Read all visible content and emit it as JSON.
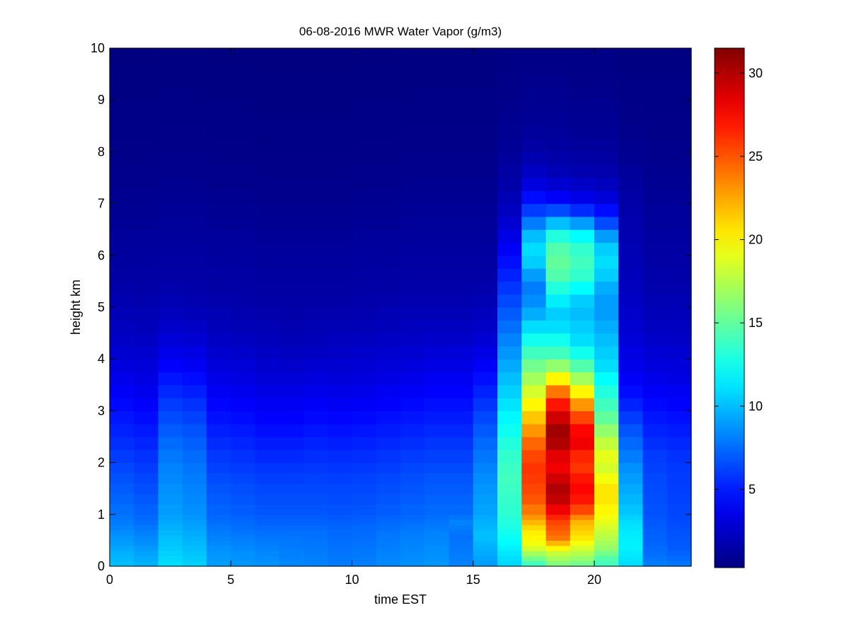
{
  "chart_data": {
    "type": "heatmap",
    "title": "06-08-2016 MWR Water Vapor (g/m3)",
    "xlabel": "time EST",
    "ylabel": "height km",
    "xlim": [
      0,
      24
    ],
    "ylim": [
      0,
      10
    ],
    "x_ticks": [
      0,
      5,
      10,
      15,
      20
    ],
    "y_ticks": [
      0,
      1,
      2,
      3,
      4,
      5,
      6,
      7,
      8,
      9,
      10
    ],
    "grid": false,
    "colorbar": {
      "colormap": "jet",
      "clim": [
        0.3,
        31.5
      ],
      "ticks": [
        5,
        10,
        15,
        20,
        25,
        30
      ]
    },
    "time_bins": [
      0,
      1,
      2,
      3,
      4,
      5,
      6,
      7,
      8,
      9,
      10,
      11,
      12,
      13,
      14,
      15,
      16,
      17,
      18,
      19,
      20,
      21,
      22,
      23
    ],
    "height_bins_km": [
      0.0,
      0.1,
      0.2,
      0.3,
      0.4,
      0.5,
      0.6,
      0.7,
      0.8,
      0.9,
      1.0,
      1.2,
      1.4,
      1.6,
      1.8,
      2.0,
      2.25,
      2.5,
      2.75,
      3.0,
      3.25,
      3.5,
      3.75,
      4.0,
      4.25,
      4.5,
      4.75,
      5.0,
      5.25,
      5.5,
      5.75,
      6.0,
      6.25,
      6.5,
      6.75,
      7.0,
      7.25,
      7.5,
      7.75,
      8.0,
      8.25,
      8.5,
      8.75,
      9.0,
      9.25,
      9.5,
      9.75
    ],
    "values_g_m3": [
      [
        10.0,
        9.8,
        9.6,
        9.3,
        9.0,
        8.8,
        8.5,
        8.2,
        8.0,
        7.8,
        7.6,
        7.3,
        7.0,
        6.7,
        6.4,
        6.0,
        5.6,
        5.2,
        4.8,
        4.4,
        4.0,
        3.6,
        3.2,
        2.8,
        2.5,
        2.2,
        2.0,
        1.8,
        1.6,
        1.4,
        1.3,
        1.2,
        1.1,
        1.0,
        0.9,
        0.8,
        0.7,
        0.7,
        0.6,
        0.6,
        0.5,
        0.5,
        0.5,
        0.4,
        0.4,
        0.4,
        0.3
      ],
      [
        9.6,
        9.4,
        9.2,
        8.9,
        8.6,
        8.4,
        8.1,
        7.9,
        7.6,
        7.4,
        7.2,
        6.9,
        6.6,
        6.3,
        6.0,
        5.7,
        5.3,
        4.9,
        4.5,
        4.1,
        3.7,
        3.3,
        3.0,
        2.7,
        2.4,
        2.1,
        1.9,
        1.7,
        1.5,
        1.4,
        1.3,
        1.2,
        1.1,
        1.0,
        0.9,
        0.8,
        0.7,
        0.7,
        0.6,
        0.6,
        0.5,
        0.5,
        0.5,
        0.4,
        0.4,
        0.4,
        0.3
      ],
      [
        11.0,
        10.8,
        10.6,
        10.4,
        10.2,
        10.0,
        9.8,
        9.6,
        9.4,
        9.2,
        9.0,
        8.8,
        8.6,
        8.4,
        8.2,
        7.9,
        7.5,
        7.0,
        6.5,
        6.0,
        5.4,
        4.8,
        4.2,
        3.6,
        3.0,
        2.6,
        2.2,
        1.9,
        1.7,
        1.5,
        1.4,
        1.3,
        1.2,
        1.1,
        1.0,
        0.9,
        0.8,
        0.7,
        0.7,
        0.6,
        0.6,
        0.5,
        0.5,
        0.5,
        0.4,
        0.4,
        0.4
      ],
      [
        10.6,
        10.4,
        10.2,
        10.0,
        9.8,
        9.6,
        9.4,
        9.2,
        9.0,
        8.8,
        8.6,
        8.4,
        8.2,
        8.0,
        7.8,
        7.5,
        7.1,
        6.7,
        6.2,
        5.7,
        5.1,
        4.5,
        3.9,
        3.4,
        2.9,
        2.5,
        2.1,
        1.8,
        1.6,
        1.5,
        1.4,
        1.3,
        1.2,
        1.1,
        1.0,
        0.9,
        0.8,
        0.7,
        0.7,
        0.6,
        0.6,
        0.5,
        0.5,
        0.5,
        0.4,
        0.4,
        0.4
      ],
      [
        9.0,
        8.9,
        8.8,
        8.6,
        8.4,
        8.2,
        8.0,
        7.8,
        7.6,
        7.4,
        7.2,
        7.0,
        6.8,
        6.5,
        6.2,
        5.9,
        5.5,
        5.1,
        4.7,
        4.3,
        3.9,
        3.5,
        3.1,
        2.7,
        2.4,
        2.1,
        1.9,
        1.7,
        1.5,
        1.4,
        1.3,
        1.2,
        1.1,
        1.0,
        0.9,
        0.8,
        0.7,
        0.7,
        0.6,
        0.6,
        0.5,
        0.5,
        0.5,
        0.4,
        0.4,
        0.4,
        0.3
      ],
      [
        8.8,
        8.7,
        8.6,
        8.4,
        8.2,
        8.0,
        7.8,
        7.6,
        7.4,
        7.2,
        7.0,
        6.8,
        6.6,
        6.3,
        6.0,
        5.7,
        5.3,
        4.9,
        4.5,
        4.1,
        3.7,
        3.3,
        3.0,
        2.6,
        2.3,
        2.0,
        1.8,
        1.6,
        1.5,
        1.4,
        1.3,
        1.2,
        1.1,
        1.0,
        0.9,
        0.8,
        0.7,
        0.7,
        0.6,
        0.6,
        0.5,
        0.5,
        0.5,
        0.4,
        0.4,
        0.4,
        0.3
      ],
      [
        8.6,
        8.5,
        8.4,
        8.2,
        8.0,
        7.8,
        7.6,
        7.4,
        7.2,
        7.0,
        6.8,
        6.6,
        6.4,
        6.1,
        5.8,
        5.4,
        5.0,
        4.6,
        4.2,
        3.8,
        3.4,
        3.0,
        2.7,
        2.4,
        2.1,
        1.9,
        1.7,
        1.5,
        1.4,
        1.3,
        1.2,
        1.1,
        1.0,
        0.9,
        0.8,
        0.7,
        0.7,
        0.6,
        0.6,
        0.5,
        0.5,
        0.5,
        0.4,
        0.4,
        0.4,
        0.3,
        0.3
      ],
      [
        8.3,
        8.2,
        8.1,
        8.0,
        7.9,
        7.8,
        7.6,
        7.4,
        7.2,
        7.0,
        6.8,
        6.6,
        6.4,
        6.1,
        5.8,
        5.4,
        5.0,
        4.6,
        4.2,
        3.8,
        3.4,
        3.0,
        2.6,
        2.3,
        2.0,
        1.8,
        1.6,
        1.5,
        1.4,
        1.3,
        1.2,
        1.1,
        1.0,
        0.9,
        0.8,
        0.7,
        0.7,
        0.6,
        0.6,
        0.5,
        0.5,
        0.5,
        0.4,
        0.4,
        0.4,
        0.3,
        0.3
      ],
      [
        8.2,
        8.1,
        8.0,
        7.9,
        7.8,
        7.7,
        7.6,
        7.4,
        7.2,
        7.0,
        6.8,
        6.6,
        6.4,
        6.2,
        5.9,
        5.6,
        5.2,
        4.8,
        4.4,
        4.0,
        3.6,
        3.2,
        2.8,
        2.4,
        2.1,
        1.9,
        1.7,
        1.5,
        1.4,
        1.3,
        1.2,
        1.1,
        1.0,
        0.9,
        0.8,
        0.7,
        0.7,
        0.6,
        0.6,
        0.5,
        0.5,
        0.5,
        0.4,
        0.4,
        0.4,
        0.3,
        0.3
      ],
      [
        8.0,
        7.9,
        7.8,
        7.7,
        7.6,
        7.5,
        7.4,
        7.3,
        7.1,
        6.9,
        6.7,
        6.5,
        6.3,
        6.1,
        5.8,
        5.5,
        5.1,
        4.7,
        4.3,
        3.9,
        3.5,
        3.1,
        2.8,
        2.5,
        2.2,
        1.9,
        1.7,
        1.5,
        1.4,
        1.3,
        1.2,
        1.1,
        1.0,
        0.9,
        0.8,
        0.7,
        0.7,
        0.6,
        0.6,
        0.5,
        0.5,
        0.5,
        0.4,
        0.4,
        0.4,
        0.3,
        0.3
      ],
      [
        8.1,
        8.0,
        7.9,
        7.8,
        7.7,
        7.6,
        7.5,
        7.4,
        7.2,
        7.0,
        6.8,
        6.6,
        6.4,
        6.2,
        5.9,
        5.6,
        5.2,
        4.8,
        4.4,
        4.0,
        3.6,
        3.2,
        2.9,
        2.6,
        2.3,
        2.0,
        1.8,
        1.6,
        1.5,
        1.4,
        1.3,
        1.2,
        1.1,
        1.0,
        0.9,
        0.8,
        0.7,
        0.7,
        0.6,
        0.6,
        0.5,
        0.5,
        0.5,
        0.4,
        0.4,
        0.4,
        0.3
      ],
      [
        8.4,
        8.3,
        8.2,
        8.1,
        8.0,
        7.9,
        7.8,
        7.6,
        7.4,
        7.2,
        7.0,
        6.8,
        6.6,
        6.4,
        6.1,
        5.8,
        5.4,
        5.0,
        4.6,
        4.2,
        3.8,
        3.4,
        3.0,
        2.7,
        2.4,
        2.1,
        1.9,
        1.7,
        1.5,
        1.4,
        1.3,
        1.2,
        1.1,
        1.0,
        0.9,
        0.8,
        0.7,
        0.7,
        0.6,
        0.6,
        0.5,
        0.5,
        0.5,
        0.4,
        0.4,
        0.4,
        0.3
      ],
      [
        8.6,
        8.5,
        8.4,
        8.3,
        8.2,
        8.1,
        8.0,
        7.8,
        7.6,
        7.4,
        7.2,
        7.0,
        6.8,
        6.6,
        6.3,
        6.0,
        5.6,
        5.2,
        4.8,
        4.4,
        4.0,
        3.6,
        3.2,
        2.8,
        2.5,
        2.2,
        2.0,
        1.8,
        1.6,
        1.5,
        1.4,
        1.3,
        1.2,
        1.1,
        1.0,
        0.9,
        0.8,
        0.7,
        0.7,
        0.6,
        0.6,
        0.5,
        0.5,
        0.5,
        0.4,
        0.4,
        0.4
      ],
      [
        8.8,
        8.7,
        8.6,
        8.5,
        8.4,
        8.3,
        8.2,
        8.0,
        7.8,
        7.6,
        7.4,
        7.2,
        7.0,
        6.8,
        6.5,
        6.2,
        5.8,
        5.4,
        5.0,
        4.6,
        4.2,
        3.8,
        3.4,
        3.0,
        2.6,
        2.3,
        2.0,
        1.8,
        1.6,
        1.5,
        1.4,
        1.3,
        1.2,
        1.1,
        1.0,
        0.9,
        0.8,
        0.7,
        0.7,
        0.6,
        0.6,
        0.5,
        0.5,
        0.5,
        0.4,
        0.4,
        0.4
      ],
      [
        8.2,
        8.1,
        8.0,
        7.9,
        7.8,
        7.7,
        7.8,
        8.0,
        8.2,
        7.8,
        7.4,
        7.2,
        7.0,
        6.8,
        6.5,
        6.2,
        5.8,
        5.4,
        5.0,
        4.6,
        4.2,
        3.8,
        3.4,
        3.0,
        2.6,
        2.3,
        2.0,
        1.8,
        1.6,
        1.5,
        1.4,
        1.3,
        1.2,
        1.1,
        1.0,
        0.9,
        0.8,
        0.7,
        0.7,
        0.6,
        0.6,
        0.5,
        0.5,
        0.5,
        0.4,
        0.4,
        0.4
      ],
      [
        9.0,
        9.2,
        9.4,
        9.6,
        9.8,
        10.0,
        10.0,
        9.8,
        9.6,
        9.4,
        9.2,
        9.0,
        8.8,
        8.5,
        8.2,
        7.8,
        7.4,
        6.9,
        6.4,
        5.8,
        5.2,
        4.6,
        4.0,
        3.4,
        2.9,
        2.5,
        2.2,
        1.9,
        1.7,
        1.5,
        1.4,
        1.3,
        1.2,
        1.1,
        1.0,
        0.9,
        0.8,
        0.7,
        0.7,
        0.6,
        0.6,
        0.5,
        0.5,
        0.5,
        0.4,
        0.4,
        0.4
      ],
      [
        10.8,
        11.0,
        11.3,
        11.6,
        11.9,
        12.2,
        12.5,
        12.8,
        13.0,
        13.2,
        13.4,
        13.6,
        13.8,
        14.0,
        13.8,
        13.5,
        13.0,
        12.4,
        11.8,
        11.2,
        10.6,
        10.0,
        9.4,
        8.8,
        8.2,
        7.6,
        7.0,
        6.4,
        5.8,
        5.2,
        4.6,
        4.0,
        3.4,
        2.8,
        2.3,
        1.9,
        1.6,
        1.4,
        1.2,
        1.0,
        0.9,
        0.8,
        0.7,
        0.6,
        0.6,
        0.5,
        0.5
      ],
      [
        14.0,
        15.5,
        17.0,
        18.5,
        19.5,
        20.0,
        20.3,
        21.0,
        22.0,
        23.0,
        24.0,
        25.0,
        25.5,
        25.8,
        26.0,
        25.5,
        24.5,
        23.0,
        21.5,
        20.0,
        18.5,
        17.0,
        15.5,
        14.0,
        12.5,
        11.0,
        9.5,
        8.5,
        8.0,
        9.0,
        10.5,
        11.0,
        10.0,
        8.0,
        6.0,
        4.5,
        3.2,
        2.4,
        1.8,
        1.4,
        1.2,
        1.0,
        0.9,
        0.8,
        0.7,
        0.6,
        0.5
      ],
      [
        16.0,
        17.0,
        18.0,
        20.0,
        22.0,
        24.0,
        24.5,
        25.0,
        25.5,
        26.5,
        28.0,
        29.5,
        30.0,
        29.0,
        28.0,
        28.5,
        30.0,
        30.5,
        29.0,
        27.0,
        24.0,
        20.0,
        16.5,
        14.0,
        12.5,
        11.0,
        10.5,
        11.5,
        13.0,
        14.5,
        15.0,
        14.5,
        13.0,
        10.0,
        6.5,
        4.0,
        2.8,
        2.0,
        1.6,
        1.3,
        1.1,
        1.0,
        0.9,
        0.8,
        0.7,
        0.6,
        0.5
      ],
      [
        15.5,
        16.5,
        17.5,
        18.5,
        19.5,
        20.5,
        21.0,
        21.5,
        22.0,
        23.5,
        25.5,
        27.0,
        27.5,
        27.0,
        26.0,
        26.5,
        28.0,
        27.5,
        25.5,
        23.0,
        20.0,
        17.0,
        14.5,
        12.5,
        11.0,
        10.5,
        10.0,
        10.5,
        12.0,
        13.5,
        14.0,
        13.5,
        12.0,
        9.0,
        5.5,
        3.5,
        2.5,
        1.8,
        1.5,
        1.2,
        1.0,
        0.9,
        0.8,
        0.7,
        0.6,
        0.5,
        0.5
      ],
      [
        14.0,
        14.5,
        15.5,
        16.5,
        17.0,
        17.5,
        18.0,
        18.5,
        19.0,
        19.5,
        20.0,
        20.5,
        20.5,
        19.5,
        18.5,
        19.0,
        18.0,
        16.5,
        15.0,
        14.0,
        13.0,
        12.0,
        11.0,
        10.5,
        10.0,
        9.5,
        9.0,
        9.0,
        9.5,
        10.5,
        11.0,
        10.5,
        9.0,
        6.5,
        4.5,
        3.0,
        2.2,
        1.7,
        1.4,
        1.1,
        1.0,
        0.9,
        0.8,
        0.7,
        0.6,
        0.5,
        0.5
      ],
      [
        11.0,
        11.2,
        11.4,
        11.6,
        11.6,
        11.5,
        11.4,
        11.2,
        11.0,
        10.6,
        10.2,
        9.8,
        9.4,
        9.0,
        8.6,
        8.0,
        7.4,
        6.8,
        6.0,
        5.2,
        4.5,
        4.0,
        3.6,
        3.3,
        3.0,
        2.8,
        2.6,
        2.4,
        2.2,
        2.1,
        2.0,
        1.9,
        1.8,
        1.7,
        1.6,
        1.5,
        1.3,
        1.1,
        0.9,
        0.8,
        0.7,
        0.6,
        0.6,
        0.5,
        0.5,
        0.4,
        0.4
      ],
      [
        8.0,
        7.8,
        7.6,
        7.4,
        7.3,
        7.2,
        7.1,
        7.0,
        6.9,
        6.8,
        6.7,
        6.6,
        6.5,
        6.4,
        6.2,
        6.0,
        5.6,
        5.2,
        4.8,
        4.4,
        4.0,
        3.6,
        3.2,
        2.9,
        2.6,
        2.3,
        2.1,
        1.9,
        1.7,
        1.6,
        1.5,
        1.4,
        1.3,
        1.2,
        1.1,
        1.0,
        0.9,
        0.8,
        0.7,
        0.7,
        0.6,
        0.6,
        0.5,
        0.5,
        0.5,
        0.4,
        0.4
      ],
      [
        7.8,
        7.5,
        7.2,
        7.0,
        6.9,
        6.8,
        6.7,
        6.6,
        6.5,
        6.4,
        6.3,
        6.2,
        6.1,
        6.0,
        5.9,
        5.7,
        5.4,
        5.0,
        4.6,
        4.2,
        3.8,
        3.4,
        3.1,
        2.8,
        2.5,
        2.3,
        2.1,
        1.9,
        1.7,
        1.6,
        1.5,
        1.4,
        1.3,
        1.2,
        1.1,
        1.0,
        0.9,
        0.8,
        0.7,
        0.7,
        0.6,
        0.6,
        0.5,
        0.5,
        0.5,
        0.4,
        0.4
      ]
    ]
  }
}
